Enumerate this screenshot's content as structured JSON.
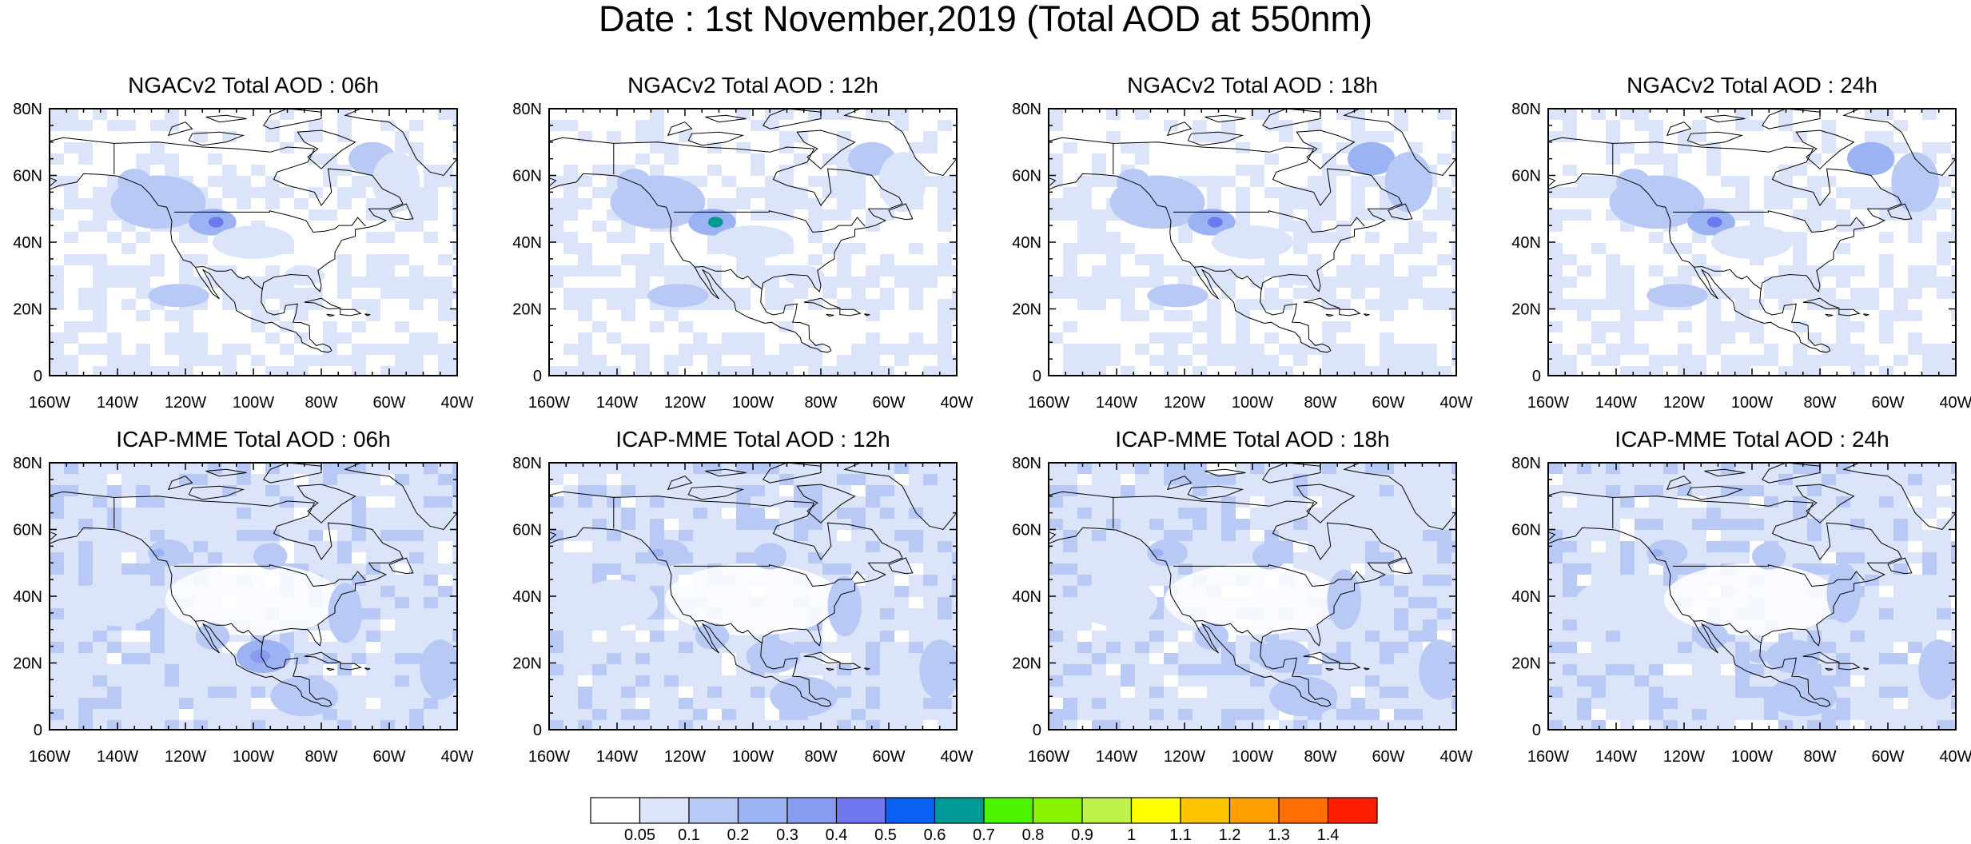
{
  "title": "Date : 1st November,2019 (Total AOD at 550nm)",
  "map_extent": {
    "lon": [
      -160,
      -40
    ],
    "lat": [
      0,
      80
    ]
  },
  "lat_ticks": [
    "80N",
    "60N",
    "40N",
    "20N",
    "0"
  ],
  "lon_ticks": [
    "160W",
    "140W",
    "120W",
    "100W",
    "80W",
    "60W",
    "40W"
  ],
  "panels": [
    {
      "title": "NGACv2 Total AOD : 06h",
      "model": "NGACv2",
      "forecast_hour": "06h"
    },
    {
      "title": "NGACv2 Total AOD : 12h",
      "model": "NGACv2",
      "forecast_hour": "12h"
    },
    {
      "title": "NGACv2 Total AOD : 18h",
      "model": "NGACv2",
      "forecast_hour": "18h"
    },
    {
      "title": "NGACv2 Total AOD : 24h",
      "model": "NGACv2",
      "forecast_hour": "24h"
    },
    {
      "title": "ICAP-MME Total AOD : 06h",
      "model": "ICAP-MME",
      "forecast_hour": "06h"
    },
    {
      "title": "ICAP-MME Total AOD : 12h",
      "model": "ICAP-MME",
      "forecast_hour": "12h"
    },
    {
      "title": "ICAP-MME Total AOD : 18h",
      "model": "ICAP-MME",
      "forecast_hour": "18h"
    },
    {
      "title": "ICAP-MME Total AOD : 24h",
      "model": "ICAP-MME",
      "forecast_hour": "24h"
    }
  ],
  "colorbar": {
    "labels": [
      "0.05",
      "0.1",
      "0.2",
      "0.3",
      "0.4",
      "0.5",
      "0.6",
      "0.7",
      "0.8",
      "0.9",
      "1",
      "1.1",
      "1.2",
      "1.3",
      "1.4"
    ],
    "colors": [
      "#ffffff",
      "#dce4fa",
      "#b9c9f6",
      "#9bb3f2",
      "#8a9cf2",
      "#6f78ee",
      "#0b61f4",
      "#009a96",
      "#4cf500",
      "#8af500",
      "#bef24a",
      "#ffff00",
      "#ffc400",
      "#ff9f00",
      "#ff6e00",
      "#ff1e00"
    ]
  }
}
